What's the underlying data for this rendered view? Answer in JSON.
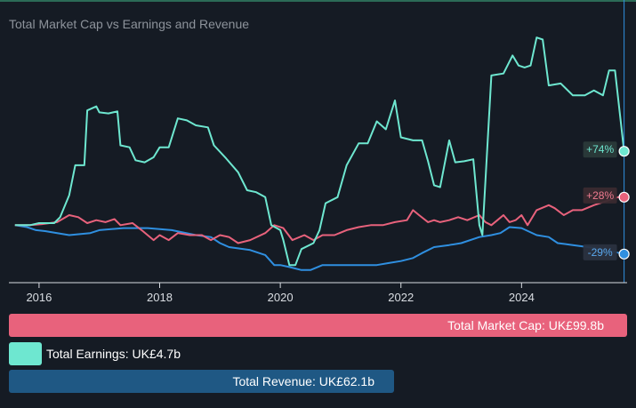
{
  "title": "Total Market Cap vs Earnings and Revenue",
  "colors": {
    "background": "#151b24",
    "market_cap": "#e8627c",
    "earnings": "#6ee7d0",
    "revenue": "#2f8fe0",
    "revenue_bar": "#1f5884",
    "axis": "#d9dde2",
    "cursor": "#2f8fe0"
  },
  "legend": {
    "market_cap": "Total Market Cap: UK£99.8b",
    "earnings": "Total Earnings: UK£4.7b",
    "revenue": "Total Revenue: UK£62.1b"
  },
  "chart_data": {
    "type": "line",
    "title": "Total Market Cap vs Earnings and Revenue",
    "xlabel": "",
    "ylabel": "",
    "x_ticks": [
      "2016",
      "2018",
      "2020",
      "2022",
      "2024"
    ],
    "xlim": [
      2015.5,
      2025.75
    ],
    "ylim": [
      -55,
      190
    ],
    "grid": false,
    "series": [
      {
        "key": "earnings",
        "name": "Total Earnings",
        "end_label": "+74%",
        "points": [
          [
            2015.6,
            0
          ],
          [
            2015.85,
            0
          ],
          [
            2016.0,
            2
          ],
          [
            2016.25,
            2
          ],
          [
            2016.35,
            8
          ],
          [
            2016.5,
            30
          ],
          [
            2016.6,
            60
          ],
          [
            2016.75,
            60
          ],
          [
            2016.8,
            115
          ],
          [
            2016.95,
            119
          ],
          [
            2017.0,
            113
          ],
          [
            2017.15,
            112
          ],
          [
            2017.3,
            114
          ],
          [
            2017.35,
            80
          ],
          [
            2017.5,
            78
          ],
          [
            2017.6,
            65
          ],
          [
            2017.75,
            63
          ],
          [
            2017.9,
            68
          ],
          [
            2018.0,
            78
          ],
          [
            2018.15,
            78
          ],
          [
            2018.3,
            107
          ],
          [
            2018.45,
            105
          ],
          [
            2018.6,
            100
          ],
          [
            2018.8,
            98
          ],
          [
            2018.9,
            80
          ],
          [
            2019.1,
            67
          ],
          [
            2019.3,
            53
          ],
          [
            2019.45,
            35
          ],
          [
            2019.6,
            33
          ],
          [
            2019.75,
            28
          ],
          [
            2019.85,
            0
          ],
          [
            2020.0,
            -5
          ],
          [
            2020.05,
            -15
          ],
          [
            2020.15,
            -40
          ],
          [
            2020.25,
            -40
          ],
          [
            2020.35,
            -24
          ],
          [
            2020.55,
            -18
          ],
          [
            2020.65,
            -5
          ],
          [
            2020.75,
            22
          ],
          [
            2020.95,
            28
          ],
          [
            2021.1,
            60
          ],
          [
            2021.3,
            82
          ],
          [
            2021.45,
            82
          ],
          [
            2021.6,
            104
          ],
          [
            2021.75,
            96
          ],
          [
            2021.9,
            125
          ],
          [
            2022.0,
            88
          ],
          [
            2022.2,
            85
          ],
          [
            2022.35,
            85
          ],
          [
            2022.45,
            64
          ],
          [
            2022.55,
            40
          ],
          [
            2022.65,
            38
          ],
          [
            2022.8,
            85
          ],
          [
            2022.9,
            63
          ],
          [
            2023.05,
            64
          ],
          [
            2023.2,
            66
          ],
          [
            2023.3,
            0
          ],
          [
            2023.35,
            -10
          ],
          [
            2023.5,
            150
          ],
          [
            2023.7,
            152
          ],
          [
            2023.85,
            170
          ],
          [
            2023.95,
            160
          ],
          [
            2024.05,
            158
          ],
          [
            2024.15,
            160
          ],
          [
            2024.25,
            188
          ],
          [
            2024.35,
            186
          ],
          [
            2024.45,
            140
          ],
          [
            2024.65,
            142
          ],
          [
            2024.85,
            130
          ],
          [
            2025.05,
            130
          ],
          [
            2025.2,
            135
          ],
          [
            2025.35,
            130
          ],
          [
            2025.45,
            155
          ],
          [
            2025.55,
            155
          ],
          [
            2025.7,
            74
          ]
        ]
      },
      {
        "key": "market_cap",
        "name": "Total Market Cap",
        "end_label": "+28%",
        "points": [
          [
            2015.6,
            0
          ],
          [
            2015.85,
            0
          ],
          [
            2016.05,
            1
          ],
          [
            2016.3,
            3
          ],
          [
            2016.5,
            10
          ],
          [
            2016.65,
            8
          ],
          [
            2016.8,
            2
          ],
          [
            2016.95,
            5
          ],
          [
            2017.1,
            3
          ],
          [
            2017.25,
            6
          ],
          [
            2017.35,
            0
          ],
          [
            2017.55,
            2
          ],
          [
            2017.7,
            -5
          ],
          [
            2017.9,
            -15
          ],
          [
            2018.0,
            -10
          ],
          [
            2018.15,
            -15
          ],
          [
            2018.3,
            -8
          ],
          [
            2018.5,
            -10
          ],
          [
            2018.7,
            -10
          ],
          [
            2018.85,
            -15
          ],
          [
            2019.0,
            -10
          ],
          [
            2019.15,
            -12
          ],
          [
            2019.3,
            -18
          ],
          [
            2019.5,
            -15
          ],
          [
            2019.75,
            -8
          ],
          [
            2019.9,
            0
          ],
          [
            2020.05,
            -3
          ],
          [
            2020.2,
            -15
          ],
          [
            2020.4,
            -10
          ],
          [
            2020.55,
            -15
          ],
          [
            2020.7,
            -10
          ],
          [
            2020.9,
            -10
          ],
          [
            2021.1,
            -5
          ],
          [
            2021.3,
            -2
          ],
          [
            2021.5,
            0
          ],
          [
            2021.7,
            0
          ],
          [
            2021.9,
            3
          ],
          [
            2022.1,
            5
          ],
          [
            2022.2,
            15
          ],
          [
            2022.3,
            10
          ],
          [
            2022.45,
            3
          ],
          [
            2022.55,
            5
          ],
          [
            2022.65,
            3
          ],
          [
            2022.8,
            5
          ],
          [
            2022.95,
            8
          ],
          [
            2023.1,
            5
          ],
          [
            2023.3,
            10
          ],
          [
            2023.4,
            3
          ],
          [
            2023.5,
            0
          ],
          [
            2023.6,
            5
          ],
          [
            2023.7,
            10
          ],
          [
            2023.8,
            3
          ],
          [
            2023.9,
            5
          ],
          [
            2024.0,
            10
          ],
          [
            2024.1,
            0
          ],
          [
            2024.25,
            15
          ],
          [
            2024.45,
            20
          ],
          [
            2024.55,
            17
          ],
          [
            2024.7,
            10
          ],
          [
            2024.85,
            15
          ],
          [
            2025.0,
            15
          ],
          [
            2025.2,
            20
          ],
          [
            2025.45,
            25
          ],
          [
            2025.6,
            28
          ],
          [
            2025.7,
            28
          ]
        ]
      },
      {
        "key": "revenue",
        "name": "Total Revenue",
        "end_label": "-29%",
        "points": [
          [
            2015.6,
            0
          ],
          [
            2015.8,
            -2
          ],
          [
            2015.95,
            -5
          ],
          [
            2016.1,
            -6
          ],
          [
            2016.5,
            -10
          ],
          [
            2016.85,
            -8
          ],
          [
            2017.0,
            -5
          ],
          [
            2017.4,
            -3
          ],
          [
            2017.8,
            -3
          ],
          [
            2018.2,
            -5
          ],
          [
            2018.6,
            -10
          ],
          [
            2018.85,
            -12
          ],
          [
            2019.0,
            -18
          ],
          [
            2019.15,
            -22
          ],
          [
            2019.5,
            -25
          ],
          [
            2019.75,
            -30
          ],
          [
            2019.9,
            -40
          ],
          [
            2020.0,
            -40
          ],
          [
            2020.15,
            -42
          ],
          [
            2020.35,
            -45
          ],
          [
            2020.5,
            -45
          ],
          [
            2020.7,
            -40
          ],
          [
            2021.0,
            -40
          ],
          [
            2021.3,
            -40
          ],
          [
            2021.6,
            -40
          ],
          [
            2021.8,
            -38
          ],
          [
            2022.0,
            -36
          ],
          [
            2022.2,
            -33
          ],
          [
            2022.35,
            -28
          ],
          [
            2022.55,
            -22
          ],
          [
            2022.8,
            -20
          ],
          [
            2023.0,
            -18
          ],
          [
            2023.3,
            -12
          ],
          [
            2023.5,
            -10
          ],
          [
            2023.65,
            -8
          ],
          [
            2023.8,
            -2
          ],
          [
            2024.0,
            -3
          ],
          [
            2024.25,
            -10
          ],
          [
            2024.45,
            -12
          ],
          [
            2024.6,
            -18
          ],
          [
            2024.85,
            -20
          ],
          [
            2025.1,
            -22
          ],
          [
            2025.4,
            -25
          ],
          [
            2025.7,
            -29
          ]
        ]
      }
    ],
    "cursor_x": 2025.7
  }
}
